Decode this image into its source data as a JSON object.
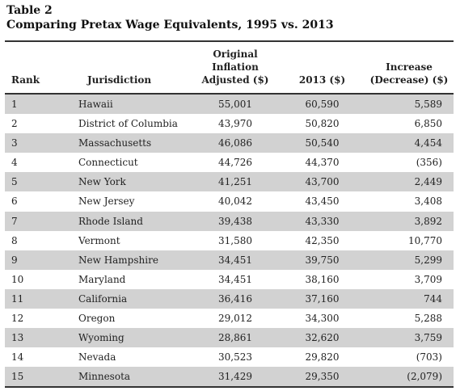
{
  "table": {
    "label": "Table 2",
    "title": "Comparing Pretax Wage Equivalents, 1995 vs. 2013",
    "headers": {
      "rank": "Rank",
      "jurisdiction": "Jurisdiction",
      "original": "Original\nInflation\nAdjusted ($)",
      "y2013": "2013 ($)",
      "increase": "Increase\n(Decrease) ($)"
    },
    "rows": [
      {
        "rank": "1",
        "jurisdiction": "Hawaii",
        "original": "55,001",
        "y2013": "60,590",
        "increase": "5,589"
      },
      {
        "rank": "2",
        "jurisdiction": "District of Columbia",
        "original": "43,970",
        "y2013": "50,820",
        "increase": "6,850"
      },
      {
        "rank": "3",
        "jurisdiction": "Massachusetts",
        "original": "46,086",
        "y2013": "50,540",
        "increase": "4,454"
      },
      {
        "rank": "4",
        "jurisdiction": "Connecticut",
        "original": "44,726",
        "y2013": "44,370",
        "increase": "(356)"
      },
      {
        "rank": "5",
        "jurisdiction": "New York",
        "original": "41,251",
        "y2013": "43,700",
        "increase": "2,449"
      },
      {
        "rank": "6",
        "jurisdiction": "New Jersey",
        "original": "40,042",
        "y2013": "43,450",
        "increase": "3,408"
      },
      {
        "rank": "7",
        "jurisdiction": "Rhode Island",
        "original": "39,438",
        "y2013": "43,330",
        "increase": "3,892"
      },
      {
        "rank": "8",
        "jurisdiction": "Vermont",
        "original": "31,580",
        "y2013": "42,350",
        "increase": "10,770"
      },
      {
        "rank": "9",
        "jurisdiction": "New Hampshire",
        "original": "34,451",
        "y2013": "39,750",
        "increase": "5,299"
      },
      {
        "rank": "10",
        "jurisdiction": "Maryland",
        "original": "34,451",
        "y2013": "38,160",
        "increase": "3,709"
      },
      {
        "rank": "11",
        "jurisdiction": "California",
        "original": "36,416",
        "y2013": "37,160",
        "increase": "744"
      },
      {
        "rank": "12",
        "jurisdiction": "Oregon",
        "original": "29,012",
        "y2013": "34,300",
        "increase": "5,288"
      },
      {
        "rank": "13",
        "jurisdiction": "Wyoming",
        "original": "28,861",
        "y2013": "32,620",
        "increase": "3,759"
      },
      {
        "rank": "14",
        "jurisdiction": "Nevada",
        "original": "30,523",
        "y2013": "29,820",
        "increase": "(703)"
      },
      {
        "rank": "15",
        "jurisdiction": "Minnesota",
        "original": "31,429",
        "y2013": "29,350",
        "increase": "(2,079)"
      }
    ]
  },
  "colors": {
    "shaded_row": "#d2d2d2",
    "rule": "#333333"
  }
}
